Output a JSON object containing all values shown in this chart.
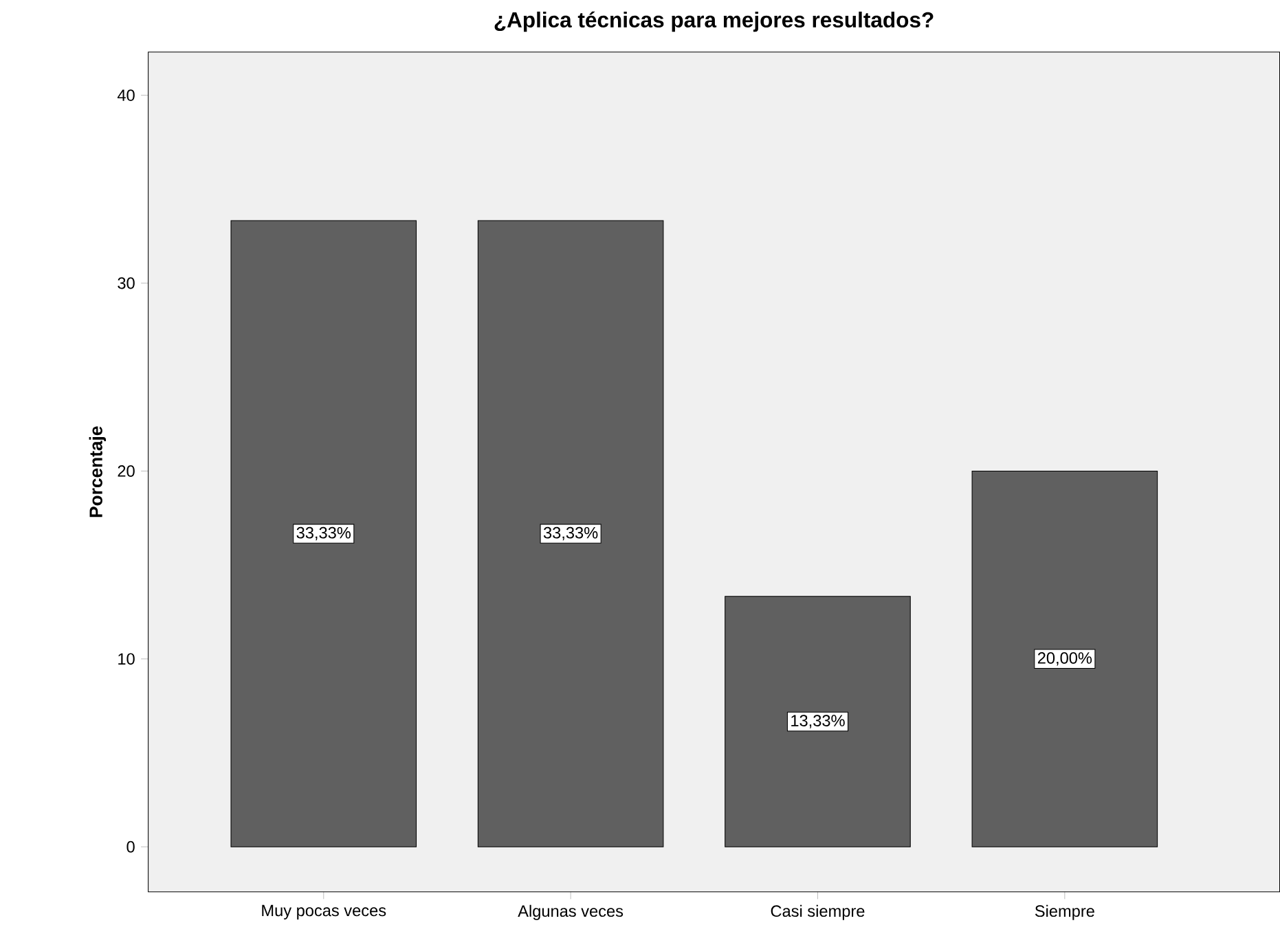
{
  "chart_data": {
    "type": "bar",
    "title": "¿Aplica técnicas para mejores resultados?",
    "ylabel": "Porcentaje",
    "categories": [
      "Muy pocas veces",
      "Algunas veces",
      "Casi siempre",
      "Siempre"
    ],
    "values": [
      33.33,
      33.33,
      13.33,
      20.0
    ],
    "value_labels": [
      "33,33%",
      "33,33%",
      "13,33%",
      "20,00%"
    ],
    "color": "#606060",
    "ylim": [
      -2.4,
      42.3
    ],
    "yticks": [
      0,
      10,
      20,
      30,
      40
    ],
    "grid": false
  }
}
